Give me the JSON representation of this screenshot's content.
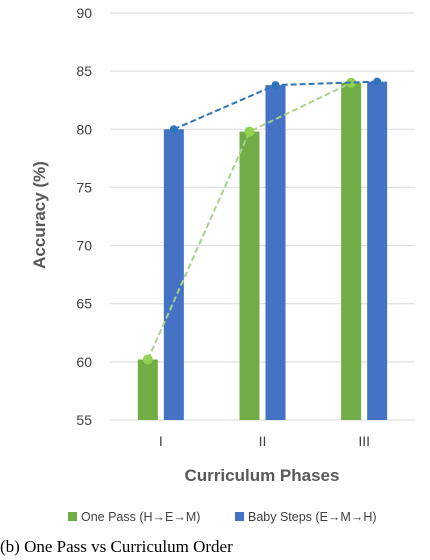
{
  "chart_data": {
    "type": "bar",
    "title": "",
    "xlabel": "Curriculum Phases",
    "ylabel": "Accuracy (%)",
    "ylim": [
      55,
      90
    ],
    "yticks": [
      55,
      60,
      65,
      70,
      75,
      80,
      85,
      90
    ],
    "categories": [
      "I",
      "II",
      "III"
    ],
    "grid": true,
    "legend_position": "bottom",
    "series": [
      {
        "name": "One Pass (H→E→M)",
        "values": [
          60.2,
          79.8,
          84.0
        ],
        "color": "#70ad47",
        "trend_line": "dashed"
      },
      {
        "name": "Baby Steps (E→M→H)",
        "values": [
          80.0,
          83.8,
          84.1
        ],
        "color": "#4472c4",
        "trend_line": "dashed"
      }
    ]
  },
  "caption": "(b) One Pass vs Curriculum Order"
}
